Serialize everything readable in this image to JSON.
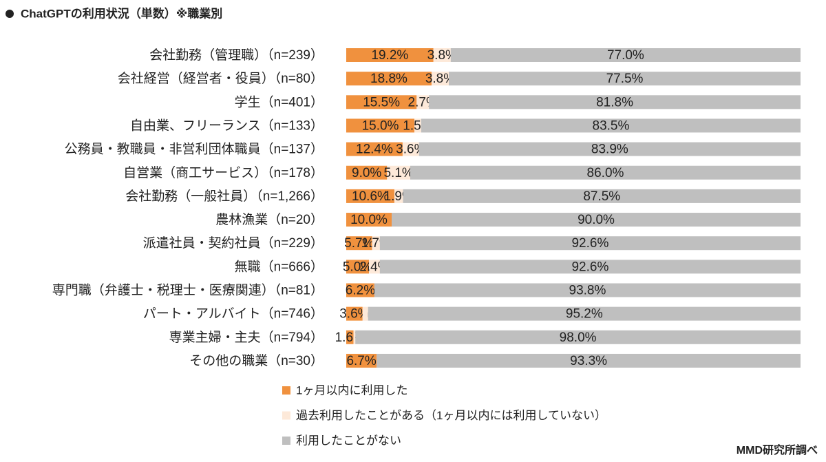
{
  "chart_data": {
    "type": "stacked-bar-horizontal-100",
    "title": "ChatGPTの利用状況（単数）※職業別",
    "source": "MMD研究所調べ",
    "categories": [
      "会社勤務（管理職）（n=239）",
      "会社経営（経営者・役員）（n=80）",
      "学生（n=401）",
      "自由業、フリーランス（n=133）",
      "公務員・教職員・非営利団体職員（n=137）",
      "自営業（商工サービス）（n=178）",
      "会社勤務（一般社員）（n=1,266）",
      "農林漁業（n=20）",
      "派遣社員・契約社員（n=229）",
      "無職（n=666）",
      "専門職（弁護士・税理士・医療関連）（n=81）",
      "パート・アルバイト（n=746）",
      "専業主婦・主夫（n=794）",
      "その他の職業（n=30）"
    ],
    "series": [
      {
        "name": "1ヶ月以内に利用した",
        "color": "#f0913e",
        "values": [
          19.2,
          18.8,
          15.5,
          15.0,
          12.4,
          9.0,
          10.6,
          10.0,
          5.7,
          5.0,
          6.2,
          3.6,
          1.6,
          6.7
        ],
        "value_labels": [
          "19.2%",
          "18.8%",
          "15.5%",
          "15.0%",
          "12.4%",
          "9.0%",
          "10.6%",
          "10.0%",
          "5.7%",
          "5.0%",
          "6.2%",
          "3.6%",
          "1.6%",
          "6.7%"
        ]
      },
      {
        "name": "過去利用したことがある（1ヶ月以内には利用していない）",
        "color": "#fde9d9",
        "values": [
          3.8,
          3.8,
          2.7,
          1.5,
          3.6,
          5.1,
          1.9,
          0,
          1.7,
          2.4,
          0,
          1.2,
          0.4,
          0
        ],
        "value_labels": [
          "3.8%",
          "3.8%",
          "2.7%",
          "1.5%",
          "3.6%",
          "5.1%",
          "1.9%",
          null,
          "1.7%",
          "2.4%",
          null,
          null,
          null,
          null
        ]
      },
      {
        "name": "利用したことがない",
        "color": "#bfbfbf",
        "values": [
          77.0,
          77.5,
          81.8,
          83.5,
          83.9,
          86.0,
          87.5,
          90.0,
          92.6,
          92.6,
          93.8,
          95.2,
          98.0,
          93.3
        ],
        "value_labels": [
          "77.0%",
          "77.5%",
          "81.8%",
          "83.5%",
          "83.9%",
          "86.0%",
          "87.5%",
          "90.0%",
          "92.6%",
          "92.6%",
          "93.8%",
          "95.2%",
          "98.0%",
          "93.3%"
        ]
      }
    ]
  }
}
